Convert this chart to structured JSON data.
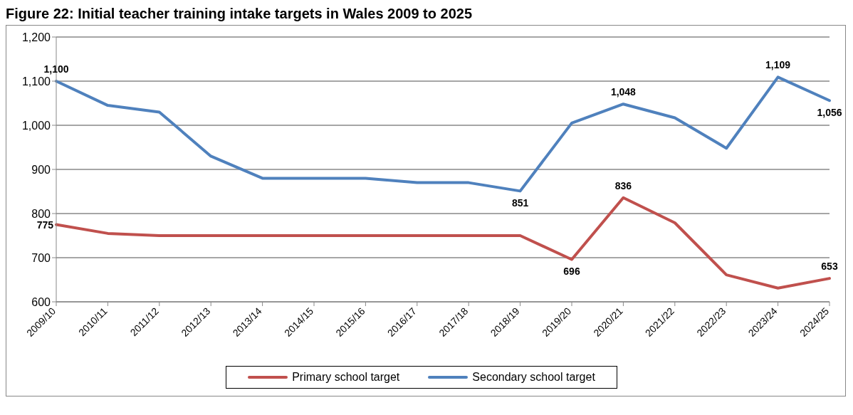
{
  "chart_data": {
    "type": "line",
    "title": "Figure 22: Initial teacher training intake targets in Wales 2009 to 2025",
    "categories": [
      "2009/10",
      "2010/11",
      "2011/12",
      "2012/13",
      "2013/14",
      "2014/15",
      "2015/16",
      "2016/17",
      "2017/18",
      "2018/19",
      "2019/20",
      "2020/21",
      "2021/22",
      "2022/23",
      "2023/24",
      "2024/25"
    ],
    "series": [
      {
        "name": "Primary school target",
        "color": "#c0504d",
        "values": [
          775,
          755,
          750,
          750,
          750,
          750,
          750,
          750,
          750,
          750,
          696,
          836,
          779,
          661,
          631,
          653
        ],
        "value_labels": [
          "775",
          null,
          null,
          null,
          null,
          null,
          null,
          null,
          null,
          null,
          "696",
          "836",
          null,
          null,
          null,
          "653"
        ]
      },
      {
        "name": "Secondary school target",
        "color": "#4f81bd",
        "values": [
          1100,
          1045,
          1030,
          930,
          880,
          880,
          880,
          870,
          870,
          851,
          1005,
          1048,
          1017,
          948,
          1109,
          1056
        ],
        "value_labels": [
          "1,100",
          null,
          null,
          null,
          null,
          null,
          null,
          null,
          null,
          "851",
          null,
          "1,048",
          null,
          null,
          "1,109",
          "1,056"
        ]
      }
    ],
    "ylim": [
      600,
      1200
    ],
    "yticks": [
      {
        "value": 600,
        "label": "600"
      },
      {
        "value": 700,
        "label": "700"
      },
      {
        "value": 800,
        "label": "800"
      },
      {
        "value": 900,
        "label": "900"
      },
      {
        "value": 1000,
        "label": "1,000"
      },
      {
        "value": 1100,
        "label": "1,100"
      },
      {
        "value": 1200,
        "label": "1,200"
      }
    ],
    "grid": "y",
    "legend": "bottom",
    "marker": "none",
    "line_style": "solid"
  }
}
